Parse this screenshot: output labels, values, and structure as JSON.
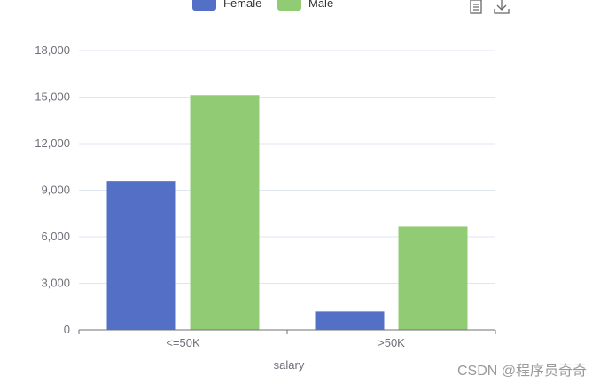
{
  "legend": {
    "items": [
      {
        "name": "Female",
        "color": "#5470c6"
      },
      {
        "name": "Male",
        "color": "#91cc75"
      }
    ]
  },
  "toolbox": {
    "icons": [
      "data-view-icon",
      "save-as-image-icon"
    ]
  },
  "watermark": "CSDN @程序员奇奇",
  "chart_data": {
    "type": "bar",
    "categories": [
      "<=50K",
      ">50K"
    ],
    "series": [
      {
        "name": "Female",
        "values": [
          9592,
          1179
        ],
        "color": "#5470c6"
      },
      {
        "name": "Male",
        "values": [
          15128,
          6662
        ],
        "color": "#91cc75"
      }
    ],
    "xlabel": "salary",
    "ylabel": "",
    "ylim": [
      0,
      18000
    ],
    "yticks": [
      "0",
      "3,000",
      "6,000",
      "9,000",
      "12,000",
      "15,000",
      "18,000"
    ],
    "ytick_values": [
      0,
      3000,
      6000,
      9000,
      12000,
      15000,
      18000
    ],
    "grid": true,
    "legend_position": "top"
  }
}
